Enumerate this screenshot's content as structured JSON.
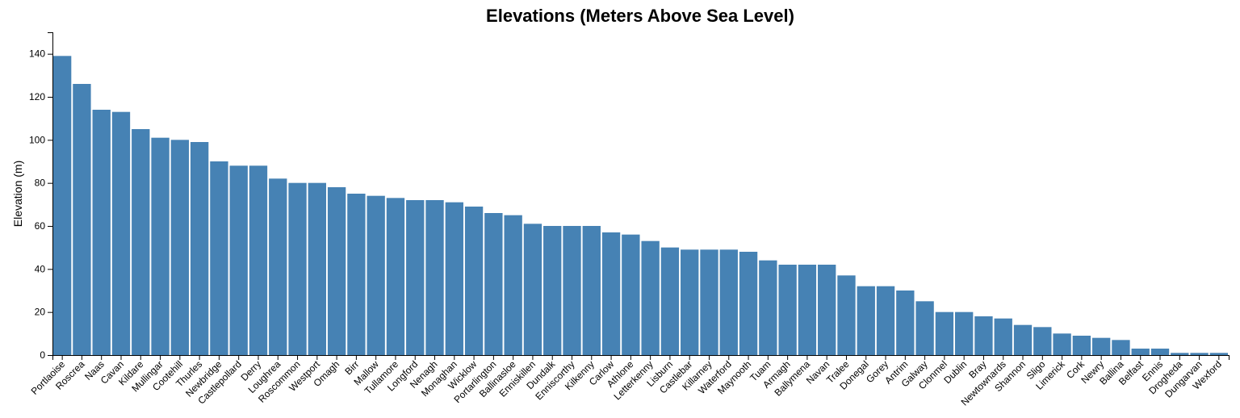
{
  "chart_data": {
    "type": "bar",
    "title": "Elevations (Meters Above Sea Level)",
    "xlabel": "",
    "ylabel": "Elevation (m)",
    "ylim": [
      0,
      150
    ],
    "yticks": [
      0,
      20,
      40,
      60,
      80,
      100,
      120,
      140
    ],
    "bar_color": "#4682b4",
    "categories": [
      "Portlaoise",
      "Roscrea",
      "Naas",
      "Cavan",
      "Kildare",
      "Mullingar",
      "Cootehill",
      "Thurles",
      "Newbridge",
      "Castlepollard",
      "Derry",
      "Loughrea",
      "Roscommon",
      "Westport",
      "Omagh",
      "Birr",
      "Mallow",
      "Tullamore",
      "Longford",
      "Nenagh",
      "Monaghan",
      "Wicklow",
      "Portarlington",
      "Ballinasloe",
      "Enniskillen",
      "Dundalk",
      "Enniscorthy",
      "Kilkenny",
      "Carlow",
      "Athlone",
      "Letterkenny",
      "Lisburn",
      "Castlebar",
      "Killarney",
      "Waterford",
      "Maynooth",
      "Tuam",
      "Armagh",
      "Ballymena",
      "Navan",
      "Tralee",
      "Donegal",
      "Gorey",
      "Antrim",
      "Galway",
      "Clonmel",
      "Dublin",
      "Bray",
      "Newtownards",
      "Shannon",
      "Sligo",
      "Limerick",
      "Cork",
      "Newry",
      "Ballina",
      "Belfast",
      "Ennis",
      "Drogheda",
      "Dungarvan",
      "Wexford"
    ],
    "values": [
      139,
      126,
      114,
      113,
      105,
      101,
      100,
      99,
      90,
      88,
      88,
      82,
      80,
      80,
      78,
      75,
      74,
      73,
      72,
      72,
      71,
      69,
      66,
      65,
      61,
      60,
      60,
      60,
      57,
      56,
      53,
      50,
      49,
      49,
      49,
      48,
      44,
      42,
      42,
      42,
      37,
      32,
      32,
      30,
      25,
      20,
      20,
      18,
      17,
      14,
      13,
      10,
      9,
      8,
      7,
      3,
      3,
      1,
      1,
      1
    ]
  }
}
